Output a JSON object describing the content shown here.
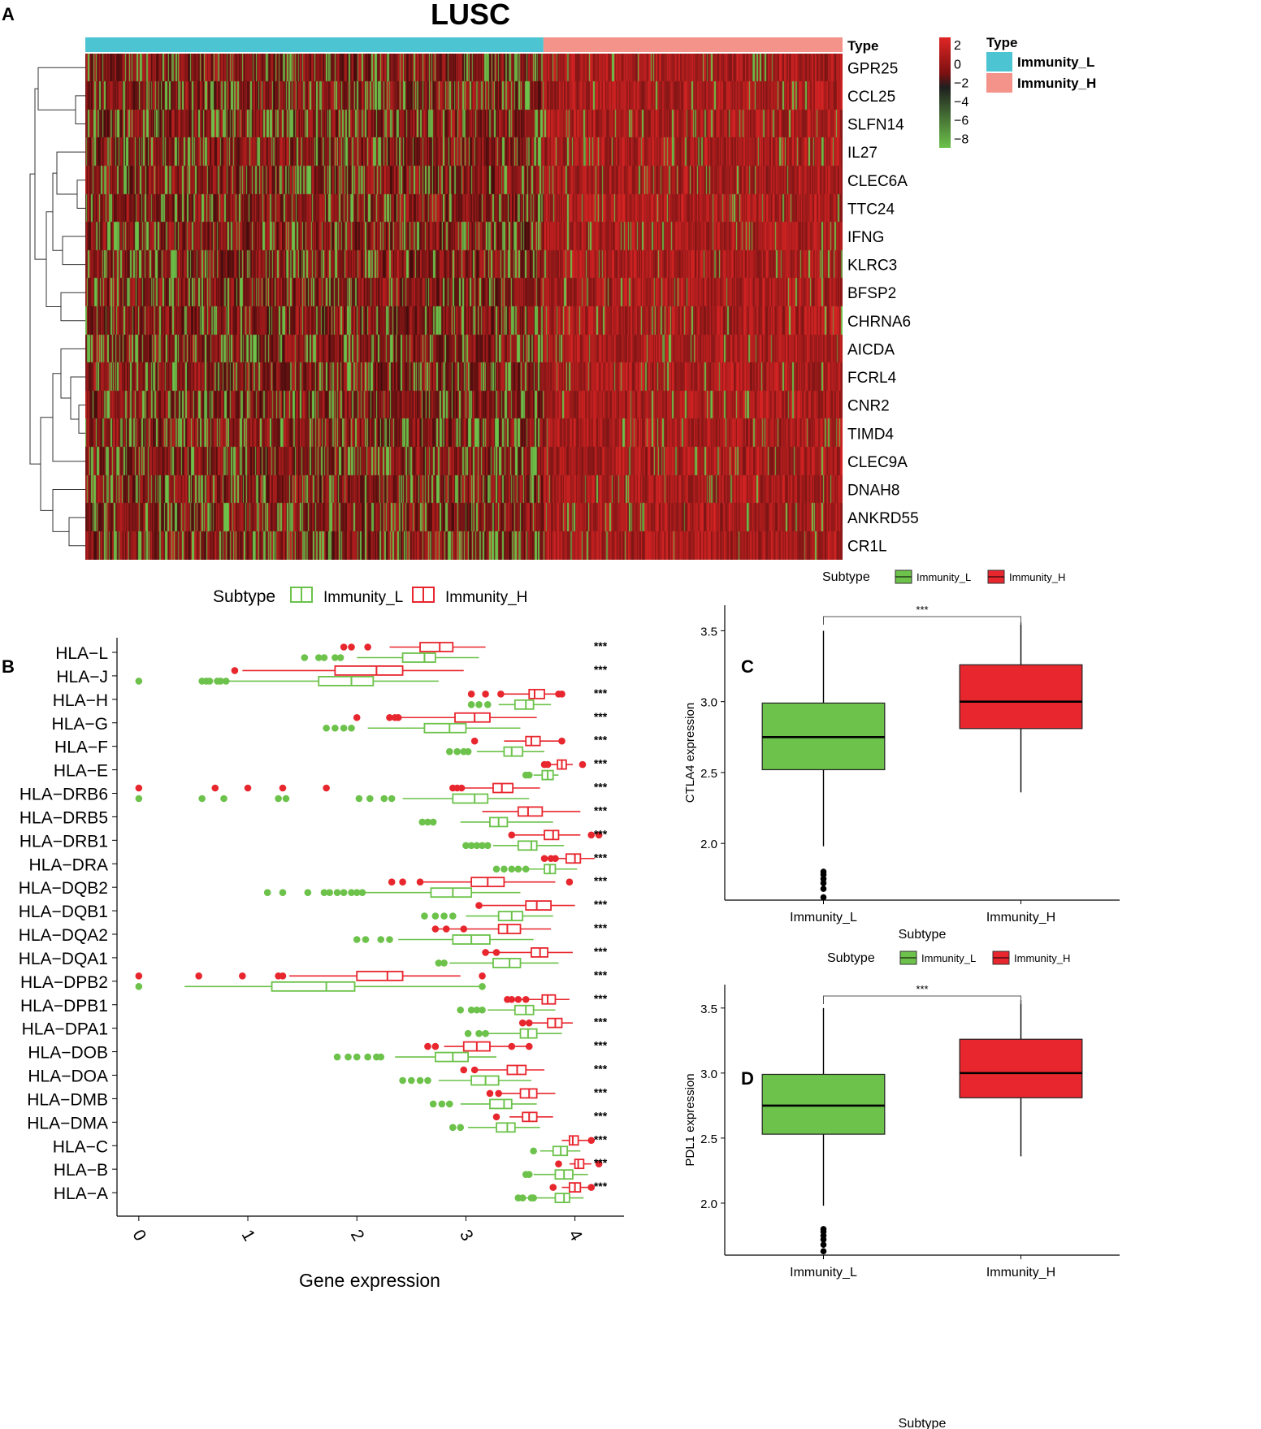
{
  "chart_data": [
    {
      "panel": "A",
      "type": "heatmap",
      "title": "LUSC",
      "rows": [
        "GPR25",
        "CCL25",
        "SLFN14",
        "IL27",
        "CLEC6A",
        "TTC24",
        "IFNG",
        "KLRC3",
        "BFSP2",
        "CHRNA6",
        "AICDA",
        "FCRL4",
        "CNR2",
        "TIMD4",
        "CLEC9A",
        "DNAH8",
        "ANKRD55",
        "CR1L"
      ],
      "column_groups": [
        {
          "name": "Immunity_L",
          "color": "#4DC4D2",
          "fraction": 0.605
        },
        {
          "name": "Immunity_H",
          "color": "#F4938A",
          "fraction": 0.395
        }
      ],
      "annotation_label": "Type",
      "colorbar": {
        "ticks": [
          "2",
          "0",
          "−2",
          "−4",
          "−6",
          "−8"
        ],
        "range": [
          -9,
          2.8
        ],
        "colors": [
          "#6CC24A",
          "#1F1F1F",
          "#E02525"
        ]
      },
      "legend": {
        "title": "Type",
        "items": [
          {
            "label": "Immunity_L",
            "color": "#4DC4D2"
          },
          {
            "label": "Immunity_H",
            "color": "#F4938A"
          }
        ]
      },
      "dendrogram": "row"
    },
    {
      "panel": "B",
      "type": "box",
      "orientation": "horizontal",
      "xlabel": "Gene expression",
      "xticks": [
        "0",
        "1",
        "2",
        "3",
        "4"
      ],
      "xlim": [
        -0.2,
        4.45
      ],
      "legend": {
        "title": "Subtype",
        "items": [
          {
            "label": "Immunity_L",
            "color": "#6CC24A"
          },
          {
            "label": "Immunity_H",
            "color": "#E8262E"
          }
        ]
      },
      "significance": "***",
      "genes": [
        {
          "name": "HLA−L",
          "L": [
            2.0,
            2.42,
            2.62,
            2.72,
            3.12
          ],
          "H": [
            2.3,
            2.58,
            2.76,
            2.88,
            3.18
          ],
          "Lo": [
            1.52,
            1.65,
            1.7,
            1.8,
            1.85
          ],
          "Ho": [
            1.88,
            1.95,
            2.1
          ]
        },
        {
          "name": "HLA−J",
          "L": [
            0.78,
            1.65,
            1.95,
            2.15,
            2.75
          ],
          "H": [
            0.95,
            1.8,
            2.18,
            2.42,
            2.98
          ],
          "Lo": [
            0.0,
            0.58,
            0.62,
            0.65,
            0.72,
            0.75,
            0.8
          ],
          "Ho": [
            0.88
          ]
        },
        {
          "name": "HLA−H",
          "L": [
            3.3,
            3.45,
            3.55,
            3.62,
            3.78
          ],
          "H": [
            3.35,
            3.58,
            3.63,
            3.72,
            3.85
          ],
          "Lo": [
            3.05,
            3.12,
            3.2
          ],
          "Ho": [
            3.05,
            3.18,
            3.32,
            3.85,
            3.88
          ]
        },
        {
          "name": "HLA−G",
          "L": [
            2.1,
            2.62,
            2.85,
            3.0,
            3.5
          ],
          "H": [
            2.35,
            2.9,
            3.08,
            3.22,
            3.65
          ],
          "Lo": [
            1.72,
            1.8,
            1.88,
            1.95
          ],
          "Ho": [
            2.0,
            2.3,
            2.35,
            2.38
          ]
        },
        {
          "name": "HLA−F",
          "L": [
            3.1,
            3.35,
            3.42,
            3.52,
            3.72
          ],
          "H": [
            3.35,
            3.55,
            3.6,
            3.68,
            3.85
          ],
          "Lo": [
            2.85,
            2.92,
            2.98,
            3.02
          ],
          "Ho": [
            3.08,
            3.88
          ]
        },
        {
          "name": "HLA−E",
          "L": [
            3.62,
            3.7,
            3.75,
            3.8,
            3.85
          ],
          "H": [
            3.78,
            3.84,
            3.88,
            3.92,
            3.98
          ],
          "Lo": [
            3.55,
            3.58
          ],
          "Ho": [
            3.72,
            3.75,
            4.07
          ]
        },
        {
          "name": "HLA−DRB6",
          "L": [
            2.42,
            2.88,
            3.08,
            3.2,
            3.58
          ],
          "H": [
            2.9,
            3.25,
            3.33,
            3.43,
            3.68
          ],
          "Lo": [
            0.0,
            0.58,
            0.78,
            1.28,
            1.35,
            2.02,
            2.12,
            2.25,
            2.32
          ],
          "Ho": [
            0.0,
            0.7,
            1.0,
            1.32,
            1.72,
            2.88,
            2.92,
            2.96
          ]
        },
        {
          "name": "HLA−DRB5",
          "L": [
            2.95,
            3.22,
            3.3,
            3.38,
            3.8
          ],
          "H": [
            3.15,
            3.48,
            3.57,
            3.7,
            4.05
          ],
          "Lo": [
            2.6,
            2.65,
            2.7
          ],
          "Ho": []
        },
        {
          "name": "HLA−DRB1",
          "L": [
            3.25,
            3.48,
            3.6,
            3.65,
            3.9
          ],
          "H": [
            3.45,
            3.72,
            3.8,
            3.85,
            4.05
          ],
          "Lo": [
            3.0,
            3.05,
            3.1,
            3.15,
            3.2
          ],
          "Ho": [
            3.42,
            4.15,
            4.22
          ]
        },
        {
          "name": "HLA−DRA",
          "L": [
            3.45,
            3.72,
            3.77,
            3.82,
            4.02
          ],
          "H": [
            3.82,
            3.92,
            4.0,
            4.05,
            4.18
          ],
          "Lo": [
            3.28,
            3.35,
            3.42,
            3.48,
            3.55
          ],
          "Ho": [
            3.72,
            3.78,
            3.82
          ]
        },
        {
          "name": "HLA−DQB2",
          "L": [
            2.08,
            2.68,
            2.88,
            3.05,
            3.5
          ],
          "H": [
            2.6,
            3.05,
            3.2,
            3.35,
            3.82
          ],
          "Lo": [
            1.18,
            1.32,
            1.55,
            1.7,
            1.75,
            1.82,
            1.88,
            1.95,
            2.0,
            2.05
          ],
          "Ho": [
            2.32,
            2.42,
            2.58,
            3.95
          ]
        },
        {
          "name": "HLA−DQB1",
          "L": [
            3.0,
            3.3,
            3.42,
            3.52,
            3.8
          ],
          "H": [
            3.15,
            3.55,
            3.65,
            3.78,
            4.0
          ],
          "Lo": [
            2.62,
            2.72,
            2.8,
            2.88
          ],
          "Ho": [
            3.12
          ]
        },
        {
          "name": "HLA−DQA2",
          "L": [
            2.38,
            2.88,
            3.05,
            3.22,
            3.62
          ],
          "H": [
            2.7,
            3.3,
            3.38,
            3.5,
            3.78
          ],
          "Lo": [
            2.0,
            2.08,
            2.22,
            2.3
          ],
          "Ho": [
            2.72,
            2.82,
            2.98
          ]
        },
        {
          "name": "HLA−DQA1",
          "L": [
            2.85,
            3.25,
            3.4,
            3.5,
            3.85
          ],
          "H": [
            3.2,
            3.6,
            3.68,
            3.75,
            3.98
          ],
          "Lo": [
            2.75,
            2.8
          ],
          "Ho": [
            3.18,
            3.28
          ]
        },
        {
          "name": "HLA−DPB2",
          "L": [
            0.42,
            1.22,
            1.72,
            1.98,
            3.15
          ],
          "H": [
            1.38,
            2.0,
            2.28,
            2.42,
            2.95
          ],
          "Lo": [
            0.0,
            3.15
          ],
          "Ho": [
            0.0,
            0.55,
            0.95,
            1.28,
            1.32,
            3.15
          ]
        },
        {
          "name": "HLA−DPB1",
          "L": [
            3.2,
            3.45,
            3.55,
            3.62,
            3.82
          ],
          "H": [
            3.5,
            3.7,
            3.75,
            3.82,
            3.95
          ],
          "Lo": [
            2.95,
            3.05,
            3.1,
            3.15
          ],
          "Ho": [
            3.38,
            3.42,
            3.48,
            3.55
          ]
        },
        {
          "name": "HLA−DPA1",
          "L": [
            3.2,
            3.5,
            3.57,
            3.65,
            3.88
          ],
          "H": [
            3.58,
            3.75,
            3.82,
            3.88,
            3.98
          ],
          "Lo": [
            3.02,
            3.12,
            3.18
          ],
          "Ho": [
            3.52,
            3.58
          ]
        },
        {
          "name": "HLA−DOB",
          "L": [
            2.35,
            2.72,
            2.88,
            3.02,
            3.28
          ],
          "H": [
            2.8,
            2.98,
            3.1,
            3.22,
            3.55
          ],
          "Lo": [
            1.82,
            1.92,
            2.0,
            2.1,
            2.18,
            2.22
          ],
          "Ho": [
            2.65,
            2.72,
            3.42,
            3.58
          ]
        },
        {
          "name": "HLA−DOA",
          "L": [
            2.75,
            3.05,
            3.18,
            3.3,
            3.6
          ],
          "H": [
            3.1,
            3.38,
            3.47,
            3.55,
            3.72
          ],
          "Lo": [
            2.42,
            2.5,
            2.58,
            2.65
          ],
          "Ho": [
            2.98,
            3.08
          ]
        },
        {
          "name": "HLA−DMB",
          "L": [
            2.95,
            3.22,
            3.35,
            3.42,
            3.65
          ],
          "H": [
            3.3,
            3.5,
            3.58,
            3.65,
            3.82
          ],
          "Lo": [
            2.7,
            2.78,
            2.85
          ],
          "Ho": [
            3.22,
            3.3
          ]
        },
        {
          "name": "HLA−DMA",
          "L": [
            3.02,
            3.28,
            3.38,
            3.45,
            3.68
          ],
          "H": [
            3.4,
            3.52,
            3.58,
            3.65,
            3.8
          ],
          "Lo": [
            2.88,
            2.95
          ],
          "Ho": [
            3.28
          ]
        },
        {
          "name": "HLA−C",
          "L": [
            3.68,
            3.8,
            3.87,
            3.93,
            4.05
          ],
          "H": [
            3.88,
            3.95,
            3.98,
            4.03,
            4.12
          ],
          "Lo": [
            3.62
          ],
          "Ho": [
            4.15
          ]
        },
        {
          "name": "HLA−B",
          "L": [
            3.62,
            3.82,
            3.9,
            3.98,
            4.12
          ],
          "H": [
            3.95,
            4.0,
            4.03,
            4.08,
            4.15
          ],
          "Lo": [
            3.55,
            3.58
          ],
          "Ho": [
            3.85,
            4.22
          ]
        },
        {
          "name": "HLA−A",
          "L": [
            3.55,
            3.82,
            3.9,
            3.95,
            4.08
          ],
          "H": [
            3.88,
            3.95,
            4.0,
            4.05,
            4.15
          ],
          "Lo": [
            3.48,
            3.52,
            3.6,
            3.62
          ],
          "Ho": [
            3.8,
            4.15
          ]
        }
      ]
    },
    {
      "panel": "C",
      "type": "box",
      "ylabel": "CTLA4 expression",
      "xlabel": "Subtype",
      "categories": [
        "Immunity_L",
        "Immunity_H"
      ],
      "yticks": [
        "2.0",
        "2.5",
        "3.0",
        "3.5"
      ],
      "ylim": [
        1.6,
        3.68
      ],
      "legend": {
        "title": "Subtype",
        "items": [
          {
            "label": "Immunity_L",
            "color": "#6CC24A"
          },
          {
            "label": "Immunity_H",
            "color": "#E8262E"
          }
        ]
      },
      "significance": "***",
      "boxes": [
        {
          "min": 1.98,
          "q1": 2.52,
          "median": 2.75,
          "q3": 2.99,
          "max": 3.5,
          "outliers": [
            1.62,
            1.68,
            1.72,
            1.75,
            1.78,
            1.8
          ]
        },
        {
          "min": 2.36,
          "q1": 2.81,
          "median": 3.0,
          "q3": 3.26,
          "max": 3.56,
          "outliers": []
        }
      ]
    },
    {
      "panel": "D",
      "type": "box",
      "ylabel": "PDL1 expression",
      "xlabel": "Subtype",
      "categories": [
        "Immunity_L",
        "Immunity_H"
      ],
      "yticks": [
        "2.0",
        "2.5",
        "3.0",
        "3.5"
      ],
      "ylim": [
        1.6,
        3.68
      ],
      "legend": {
        "title": "Subtype",
        "items": [
          {
            "label": "Immunity_L",
            "color": "#6CC24A"
          },
          {
            "label": "Immunity_H",
            "color": "#E8262E"
          }
        ]
      },
      "significance": "***",
      "boxes": [
        {
          "min": 1.98,
          "q1": 2.53,
          "median": 2.75,
          "q3": 2.99,
          "max": 3.5,
          "outliers": [
            1.63,
            1.68,
            1.72,
            1.75,
            1.78,
            1.8
          ]
        },
        {
          "min": 2.36,
          "q1": 2.81,
          "median": 3.0,
          "q3": 3.26,
          "max": 3.56,
          "outliers": []
        }
      ]
    }
  ]
}
